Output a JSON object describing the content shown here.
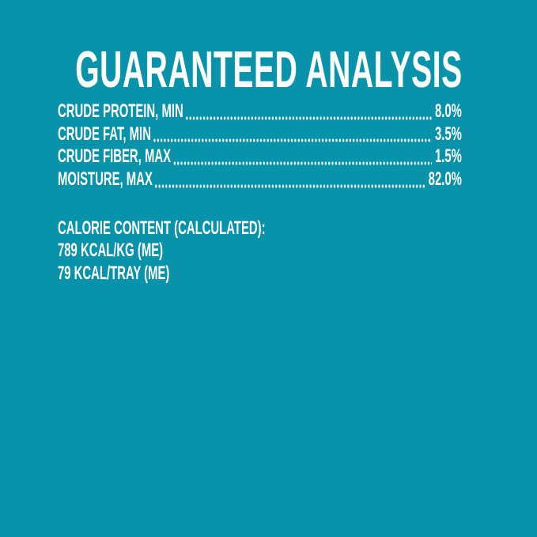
{
  "panel": {
    "title": "GUARANTEED ANALYSIS",
    "background_color": "#0993AA",
    "text_color": "#FFFFFF"
  },
  "analysis": {
    "rows": [
      {
        "label": "CRUDE PROTEIN, MIN",
        "value": "8.0%"
      },
      {
        "label": "CRUDE FAT, MIN",
        "value": "3.5%"
      },
      {
        "label": "CRUDE FIBER, MAX",
        "value": "1.5%"
      },
      {
        "label": "MOISTURE, MAX",
        "value": "82.0%"
      }
    ]
  },
  "calories": {
    "heading": "CALORIE CONTENT (CALCULATED):",
    "lines": [
      "789 KCAL/KG (ME)",
      "79 KCAL/TRAY (ME)"
    ]
  }
}
